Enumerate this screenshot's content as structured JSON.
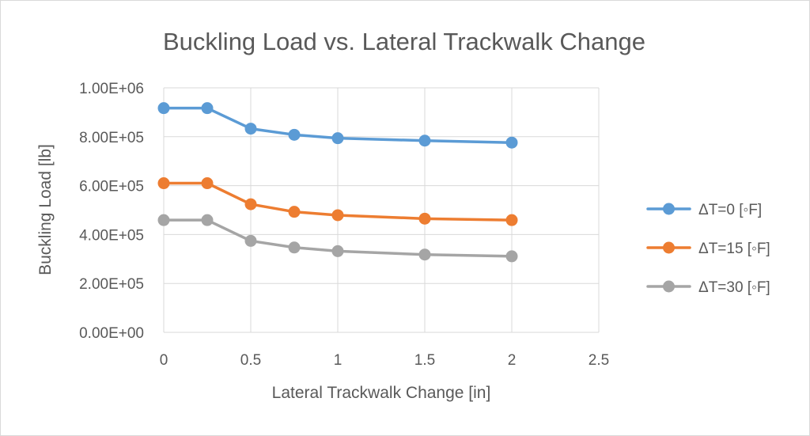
{
  "chart_data": {
    "type": "line",
    "title": "Buckling Load vs. Lateral Trackwalk Change",
    "xlabel": "Lateral Trackwalk Change [in]",
    "ylabel": "Buckling Load [lb]",
    "xlim": [
      0,
      2.5
    ],
    "ylim": [
      0,
      1000000
    ],
    "x_ticks": [
      "0",
      "0.5",
      "1",
      "1.5",
      "2",
      "2.5"
    ],
    "x_tick_values": [
      0,
      0.5,
      1,
      1.5,
      2,
      2.5
    ],
    "y_ticks": [
      "0.00E+00",
      "2.00E+05",
      "4.00E+05",
      "6.00E+05",
      "8.00E+05",
      "1.00E+06"
    ],
    "y_tick_values": [
      0,
      200000,
      400000,
      600000,
      800000,
      1000000
    ],
    "grid": "vertical and horizontal",
    "legend_position": "right",
    "x": [
      0,
      0.25,
      0.5,
      0.75,
      1,
      1.5,
      2
    ],
    "series": [
      {
        "name": "ΔT=0 [◦F]",
        "color": "#5b9bd5",
        "values": [
          917000,
          917000,
          833000,
          808000,
          794000,
          784000,
          776000
        ]
      },
      {
        "name": "ΔT=15 [◦F]",
        "color": "#ed7d31",
        "values": [
          610000,
          610000,
          524000,
          493000,
          479000,
          465000,
          459000
        ]
      },
      {
        "name": "ΔT=30 [◦F]",
        "color": "#a5a5a5",
        "values": [
          459000,
          459000,
          374000,
          347000,
          332000,
          318000,
          311000
        ]
      }
    ],
    "gridline_color": "#d9d9d9"
  }
}
